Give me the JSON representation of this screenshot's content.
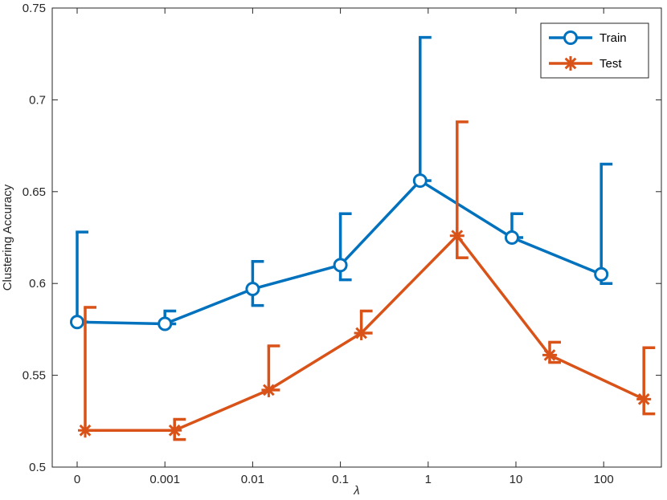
{
  "chart_data": {
    "type": "line",
    "categories": [
      "0",
      "0.001",
      "0.01",
      "0.1",
      "1",
      "10",
      "100"
    ],
    "xlabel": "λ",
    "ylabel": "Clustering Accuracy",
    "ylim": [
      0.5,
      0.75
    ],
    "yticks": [
      "0.5",
      "0.55",
      "0.6",
      "0.65",
      "0.7",
      "0.75"
    ],
    "grid": false,
    "legend_position": "top-right",
    "series": [
      {
        "name": "Train",
        "color": "#0072BD",
        "marker": "circle",
        "values": [
          0.579,
          0.578,
          0.597,
          0.61,
          0.656,
          0.625,
          0.605
        ],
        "err_low": [
          0.579,
          0.578,
          0.588,
          0.602,
          0.656,
          0.625,
          0.6
        ],
        "err_high": [
          0.628,
          0.585,
          0.612,
          0.638,
          0.734,
          0.638,
          0.665
        ]
      },
      {
        "name": "Test",
        "color": "#D95319",
        "marker": "asterisk",
        "values": [
          0.52,
          0.52,
          0.542,
          0.573,
          0.626,
          0.561,
          0.537
        ],
        "err_low": [
          0.52,
          0.515,
          0.542,
          0.573,
          0.614,
          0.557,
          0.529
        ],
        "err_high": [
          0.587,
          0.526,
          0.566,
          0.585,
          0.688,
          0.568,
          0.565
        ]
      }
    ]
  }
}
